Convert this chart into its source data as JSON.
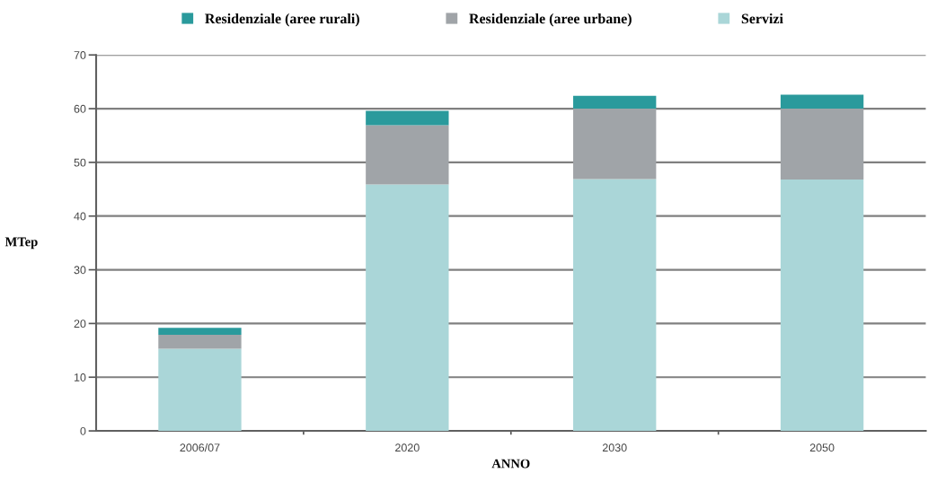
{
  "chart_data": {
    "type": "bar",
    "stacked": true,
    "categories": [
      "2006/07",
      "2020",
      "2030",
      "2050"
    ],
    "series": [
      {
        "name": "Servizi",
        "color": "#aad6d8",
        "values": [
          15.3,
          45.9,
          46.9,
          46.8
        ]
      },
      {
        "name": "Residenziale (aree urbane)",
        "color": "#a0a4a8",
        "values": [
          2.6,
          11.0,
          13.1,
          13.2
        ]
      },
      {
        "name": "Residenziale (aree rurali)",
        "color": "#2a9a9c",
        "values": [
          1.3,
          2.7,
          2.4,
          2.6
        ]
      }
    ],
    "xlabel": "ANNO",
    "ylabel": "MTep",
    "ylim": [
      0,
      70
    ],
    "yticks": [
      0,
      10,
      20,
      30,
      40,
      50,
      60,
      70
    ],
    "grid": "y",
    "legend": "top"
  }
}
